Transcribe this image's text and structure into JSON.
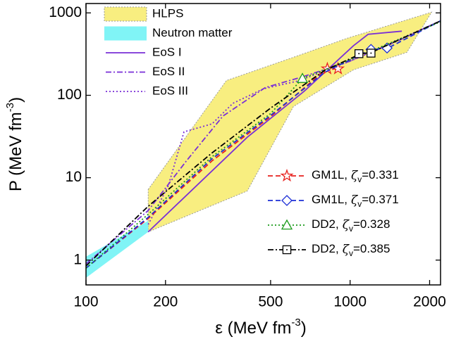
{
  "chart_data": {
    "type": "line",
    "log_x": true,
    "log_y": true,
    "xlim": [
      100,
      2200
    ],
    "ylim": [
      0.5,
      1300
    ],
    "xticks": [
      100,
      200,
      500,
      1000,
      2000
    ],
    "yticks": [
      1,
      10,
      100,
      1000
    ],
    "xlabel": {
      "main": "ε (MeV fm",
      "sup": "-3",
      "end": ")"
    },
    "ylabel": {
      "main": "P (MeV fm",
      "sup": "-3",
      "end": ")"
    },
    "bands": [
      {
        "name": "HLPS",
        "color": "#f8ee80",
        "x": [
          172,
          340,
          630,
          970,
          2035,
          1640,
          1030,
          610,
          408,
          172
        ],
        "values": [
          7.2,
          151,
          300,
          490,
          1020,
          332,
          204,
          73,
          6.9,
          2.2
        ]
      },
      {
        "name": "Neutron matter",
        "color": "#80f4f6",
        "x": [
          100,
          172,
          172,
          100
        ],
        "values": [
          1.1,
          3.0,
          2.2,
          0.61
        ]
      }
    ],
    "series": [
      {
        "name": "EoS I",
        "color": "#7a2fd6",
        "dash": "solid",
        "x": [
          172,
          408,
          670,
          1030,
          1170,
          1570
        ],
        "values": [
          2.2,
          31,
          112,
          400,
          550,
          600
        ]
      },
      {
        "name": "EoS II",
        "color": "#7a2fd6",
        "dash": "dashdot",
        "x": [
          100,
          172,
          240,
          330,
          477,
          670,
          1000,
          1500,
          2200
        ],
        "values": [
          0.9,
          4,
          16,
          56,
          124,
          170,
          260,
          450,
          800
        ]
      },
      {
        "name": "EoS III",
        "color": "#7a2fd6",
        "dash": "dot",
        "x": [
          172,
          205,
          235,
          300,
          360,
          470,
          640,
          1000,
          2200
        ],
        "values": [
          2.7,
          8,
          36,
          45,
          80,
          120,
          150,
          260,
          800
        ]
      },
      {
        "name": "GM1L,",
        "param": "ζ",
        "param_sub": "v",
        "param_value": "=0.331",
        "color": "#e8211e",
        "dash": "dash",
        "marker": "star",
        "x": [
          100,
          172,
          300,
          500,
          800,
          880
        ],
        "values": [
          0.8,
          3.2,
          16,
          55,
          200,
          210
        ],
        "markers": {
          "x": [
            820,
            900
          ],
          "values": [
            210,
            210
          ]
        }
      },
      {
        "name": "GM1L,",
        "param": "ζ",
        "param_sub": "v",
        "param_value": "=0.371",
        "color": "#1d2fd6",
        "dash": "dash",
        "marker": "diamond",
        "x": [
          100,
          172,
          300,
          500,
          800,
          1200,
          1380,
          2200
        ],
        "values": [
          0.8,
          3.3,
          17,
          57,
          190,
          360,
          370,
          800
        ],
        "markers": {
          "x": [
            1200,
            1380
          ],
          "values": [
            360,
            375
          ]
        }
      },
      {
        "name": "DD2,",
        "param": "ζ",
        "param_sub": "v",
        "param_value": "=0.328",
        "color": "#1a9a1a",
        "dash": "dot",
        "marker": "triangle",
        "x": [
          100,
          172,
          300,
          500,
          660,
          1000,
          2200
        ],
        "values": [
          0.8,
          3.6,
          18,
          60,
          160,
          270,
          780
        ],
        "markers": {
          "x": [
            660
          ],
          "values": [
            160
          ]
        }
      },
      {
        "name": "DD2,",
        "param": "ζ",
        "param_sub": "v",
        "param_value": "=0.385",
        "color": "#000000",
        "dash": "dashdot",
        "marker": "square",
        "x": [
          100,
          172,
          300,
          500,
          800,
          1100,
          1200,
          2200
        ],
        "values": [
          0.85,
          4.5,
          20,
          70,
          200,
          320,
          330,
          800
        ],
        "markers": {
          "x": [
            1080,
            1200
          ],
          "values": [
            320,
            325
          ]
        }
      }
    ]
  }
}
